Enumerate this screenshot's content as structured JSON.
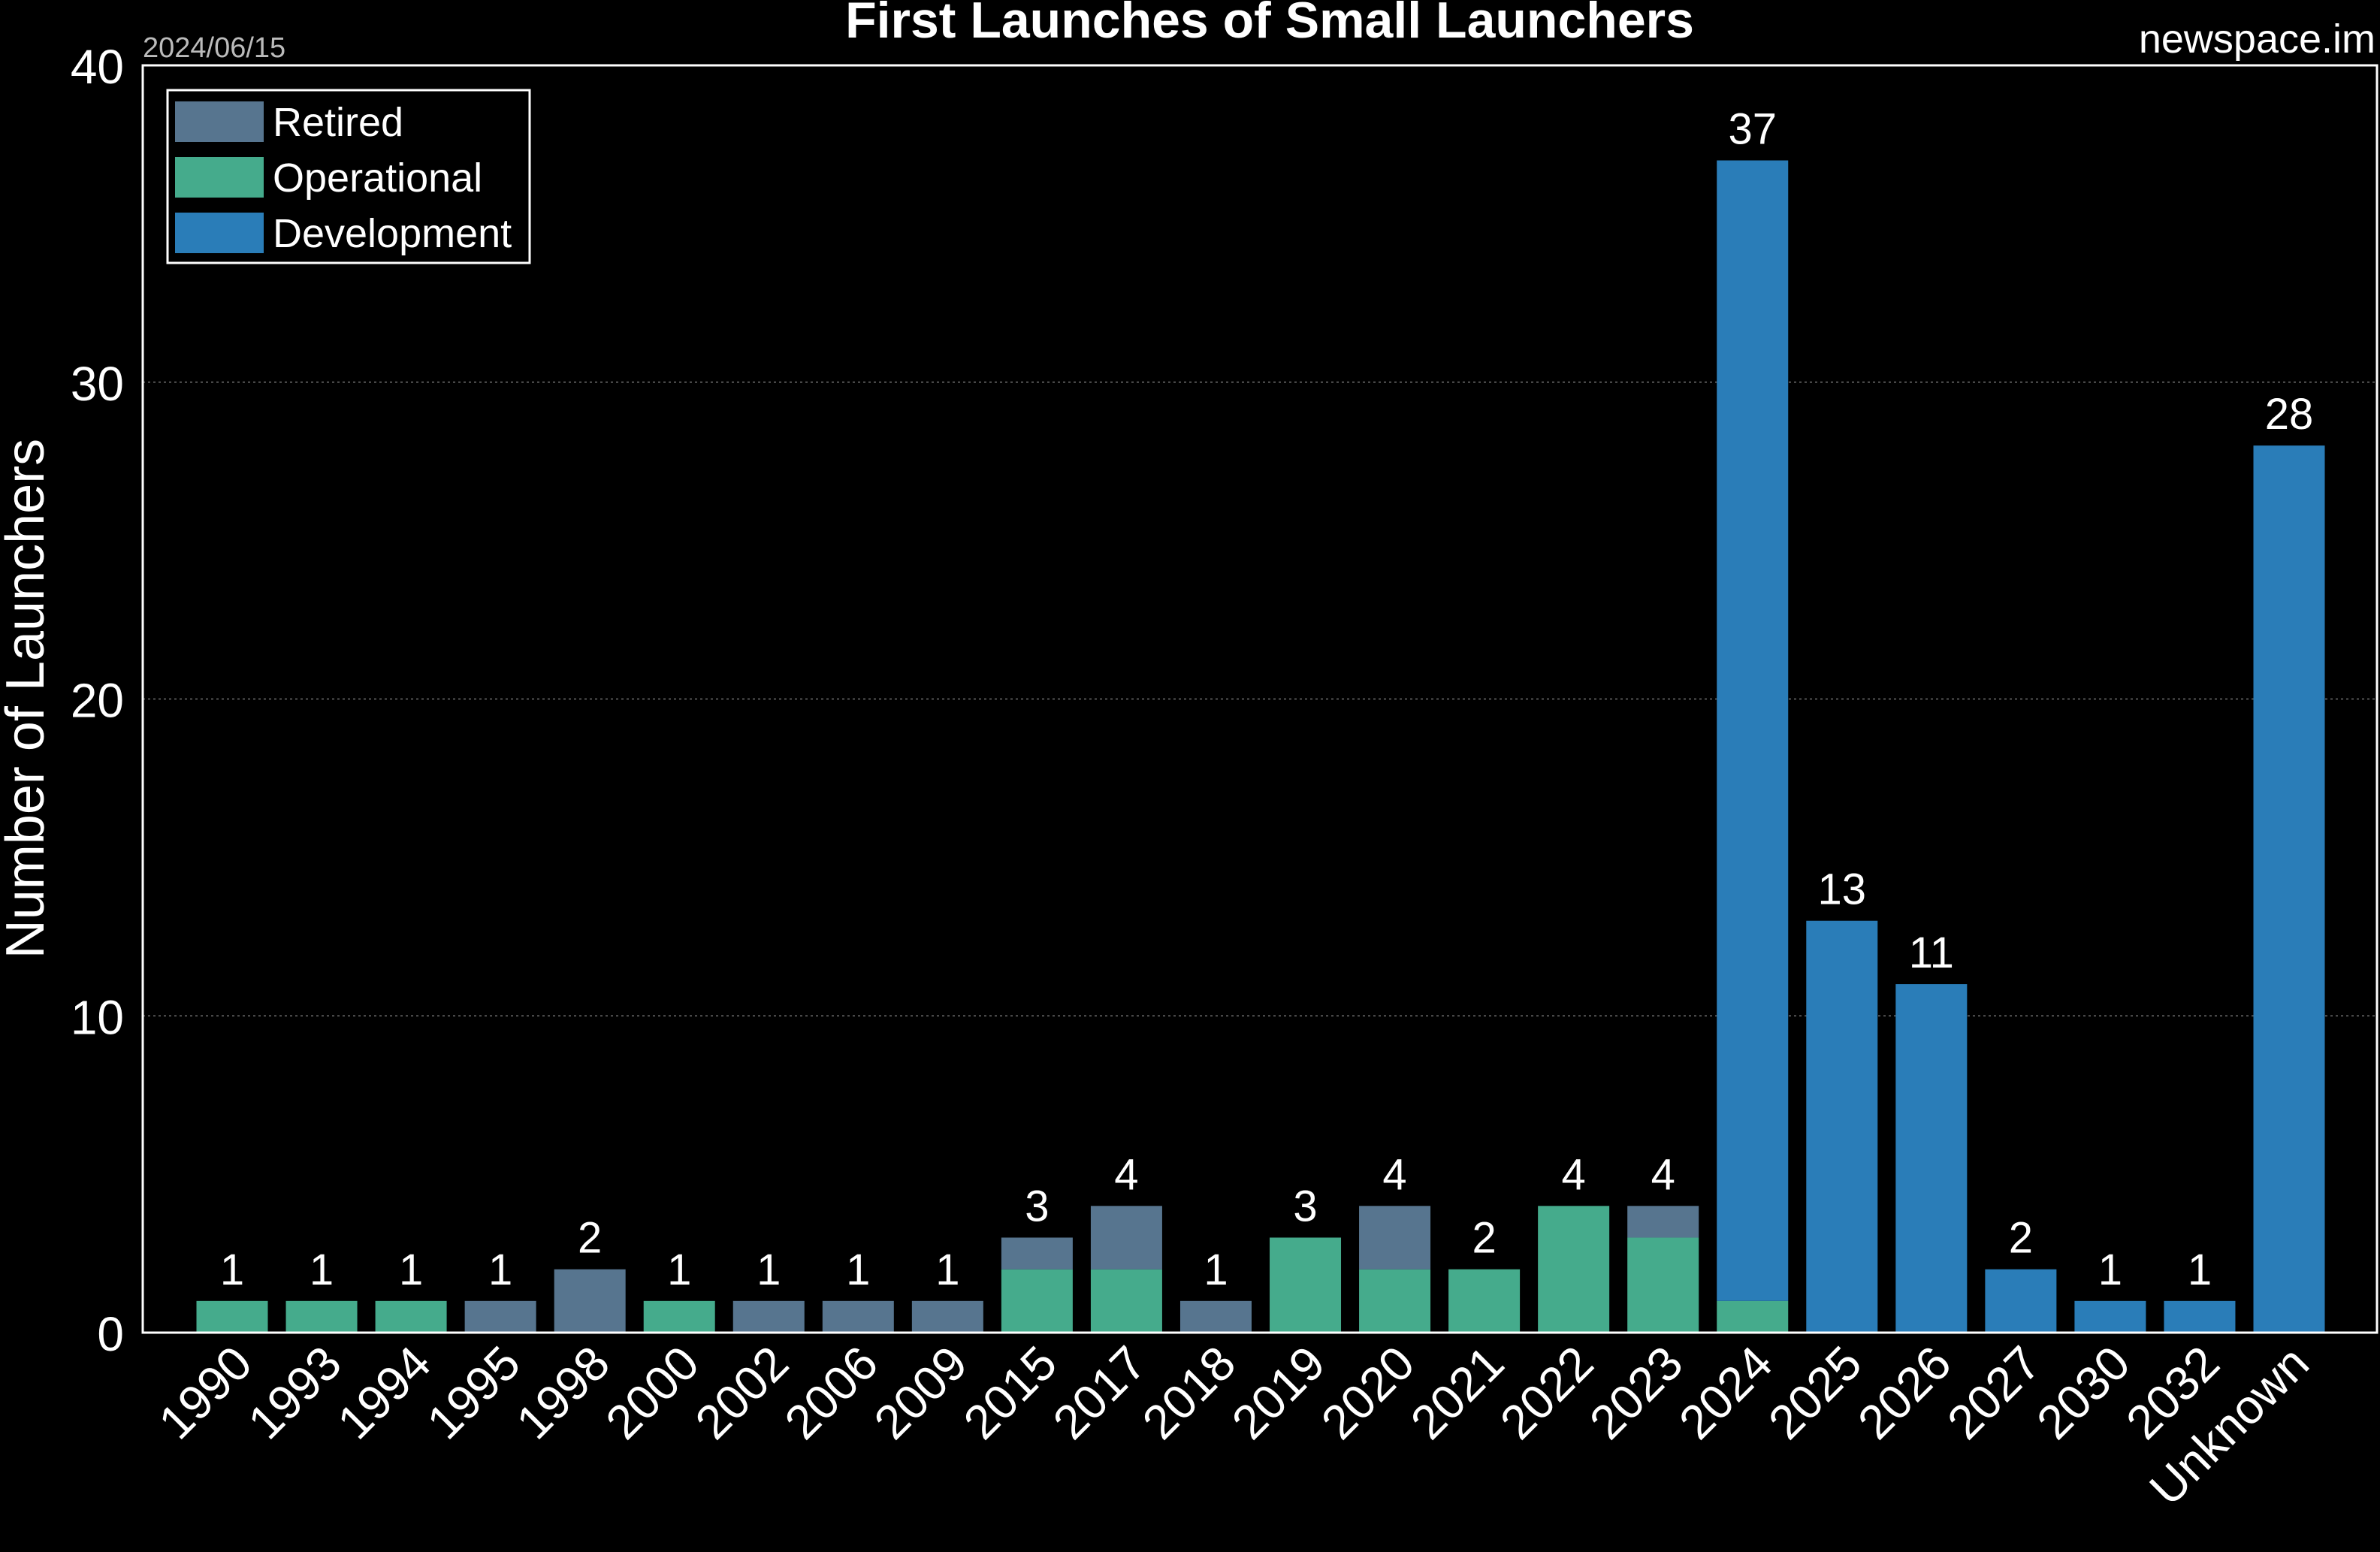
{
  "chart_data": {
    "type": "bar",
    "stacked": true,
    "title": "First Launches of Small Launchers",
    "date": "2024/06/15",
    "source": "newspace.im",
    "xlabel": "",
    "ylabel": "Number of Launchers",
    "ylim": [
      0,
      40
    ],
    "yticks": [
      0,
      10,
      20,
      30,
      40
    ],
    "grid": "horizontal dotted",
    "legend_position": "top-left",
    "categories": [
      "1990",
      "1993",
      "1994",
      "1995",
      "1998",
      "2000",
      "2002",
      "2006",
      "2009",
      "2015",
      "2017",
      "2018",
      "2019",
      "2020",
      "2021",
      "2022",
      "2023",
      "2024",
      "2025",
      "2026",
      "2027",
      "2030",
      "2032",
      "Unknown"
    ],
    "series": [
      {
        "name": "Operational",
        "color": "#45ab8c",
        "values": [
          1,
          1,
          1,
          0,
          0,
          1,
          0,
          0,
          0,
          2,
          2,
          0,
          3,
          2,
          2,
          4,
          3,
          1,
          0,
          0,
          0,
          0,
          0,
          0
        ]
      },
      {
        "name": "Retired",
        "color": "#57758f",
        "values": [
          0,
          0,
          0,
          1,
          2,
          0,
          1,
          1,
          1,
          1,
          2,
          1,
          0,
          2,
          0,
          0,
          1,
          0,
          0,
          0,
          0,
          0,
          0,
          0
        ]
      },
      {
        "name": "Development",
        "color": "#2a7db8",
        "values": [
          0,
          0,
          0,
          0,
          0,
          0,
          0,
          0,
          0,
          0,
          0,
          0,
          0,
          0,
          0,
          0,
          0,
          36,
          13,
          11,
          2,
          1,
          1,
          28
        ]
      }
    ],
    "legend_order": [
      "Retired",
      "Operational",
      "Development"
    ],
    "totals": [
      1,
      1,
      1,
      1,
      2,
      1,
      1,
      1,
      1,
      3,
      4,
      1,
      3,
      4,
      2,
      4,
      4,
      37,
      13,
      11,
      2,
      1,
      1,
      28
    ]
  }
}
